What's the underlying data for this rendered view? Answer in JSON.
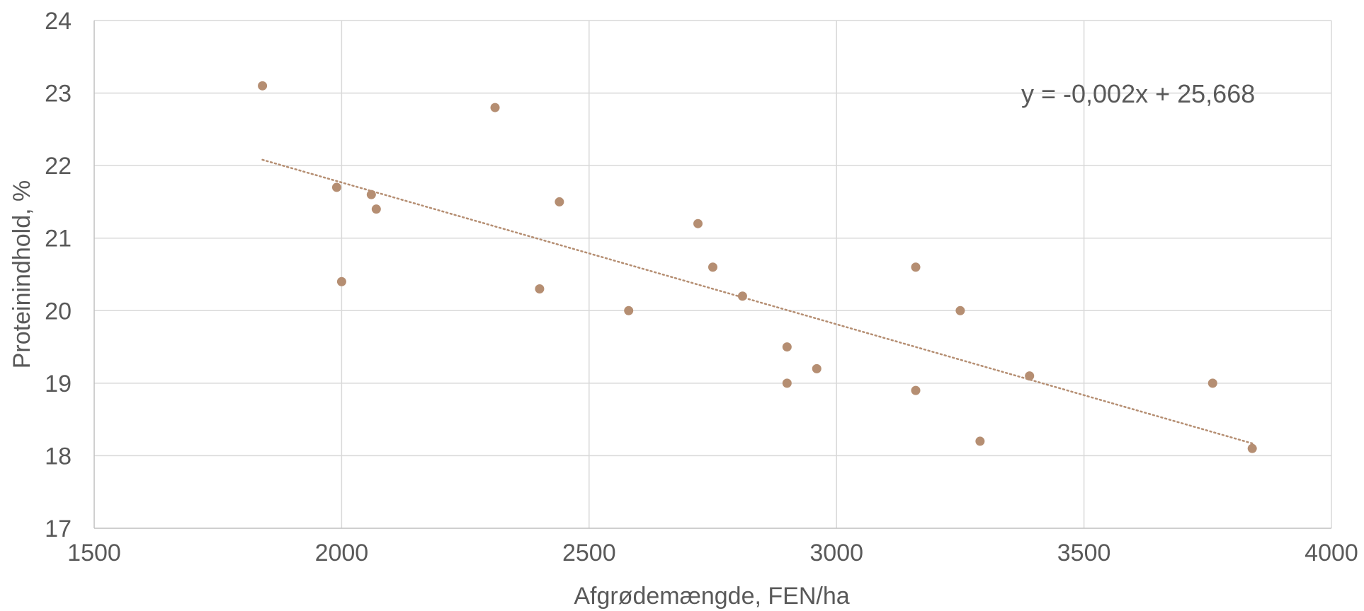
{
  "chart_data": {
    "type": "scatter",
    "title": "",
    "xlabel": "Afgrødemængde, FEN/ha",
    "ylabel": "Proteinindhold, %",
    "xlim": [
      1500,
      4000
    ],
    "ylim": [
      17,
      24
    ],
    "x_ticks": [
      1500,
      2000,
      2500,
      3000,
      3500,
      4000
    ],
    "y_ticks": [
      17,
      18,
      19,
      20,
      21,
      22,
      23,
      24
    ],
    "x_tick_labels": [
      "1500",
      "2000",
      "2500",
      "3000",
      "3500",
      "4000"
    ],
    "y_tick_labels": [
      "17",
      "18",
      "19",
      "20",
      "21",
      "22",
      "23",
      "24"
    ],
    "grid": true,
    "legend": "none",
    "series": [
      {
        "color": "#B58E72",
        "points": [
          {
            "x": 1840,
            "y": 23.1
          },
          {
            "x": 1990,
            "y": 21.7
          },
          {
            "x": 2000,
            "y": 20.4
          },
          {
            "x": 2060,
            "y": 21.6
          },
          {
            "x": 2070,
            "y": 21.4
          },
          {
            "x": 2310,
            "y": 22.8
          },
          {
            "x": 2400,
            "y": 20.3
          },
          {
            "x": 2440,
            "y": 21.5
          },
          {
            "x": 2580,
            "y": 20.0
          },
          {
            "x": 2720,
            "y": 21.2
          },
          {
            "x": 2750,
            "y": 20.6
          },
          {
            "x": 2810,
            "y": 20.2
          },
          {
            "x": 2900,
            "y": 19.5
          },
          {
            "x": 2900,
            "y": 19.0
          },
          {
            "x": 2960,
            "y": 19.2
          },
          {
            "x": 3160,
            "y": 20.6
          },
          {
            "x": 3160,
            "y": 18.9
          },
          {
            "x": 3250,
            "y": 20.0
          },
          {
            "x": 3290,
            "y": 18.2
          },
          {
            "x": 3390,
            "y": 19.1
          },
          {
            "x": 3760,
            "y": 19.0
          },
          {
            "x": 3840,
            "y": 18.1
          }
        ]
      }
    ],
    "trendline": {
      "type": "linear",
      "style": "dotted",
      "color": "#B58E72",
      "x_start": 1840,
      "x_end": 3840,
      "y_start": 22.08,
      "y_end": 18.17,
      "equation": "y = -0,002x + 25,668"
    },
    "colors": {
      "grid": "#D9D9D9",
      "axis": "#BFBFBF",
      "text": "#595959",
      "background": "#FFFFFF"
    }
  }
}
